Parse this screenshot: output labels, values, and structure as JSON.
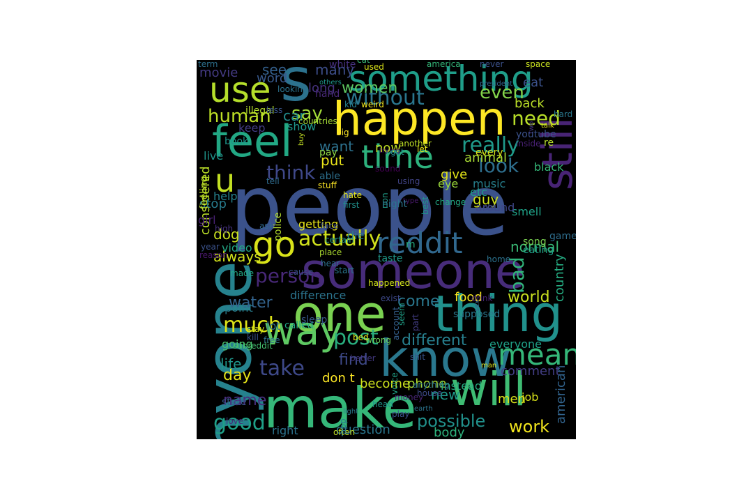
{
  "palette": {
    "background": "#000000",
    "yellow": "#fde725",
    "lime": "#9fda3a",
    "green": "#4ac16d",
    "teal": "#1fa187",
    "blue": "#277f8e",
    "navy": "#365c8d",
    "indigo": "#46327e",
    "purple": "#440154"
  },
  "words": [
    {
      "text": "people",
      "color": "#3b528b"
    },
    {
      "text": "someone",
      "color": "#472c7a"
    },
    {
      "text": "make",
      "color": "#35b779"
    },
    {
      "text": "thing",
      "color": "#21918c"
    },
    {
      "text": "know",
      "color": "#2a788e"
    },
    {
      "text": "will",
      "color": "#3fbc73"
    },
    {
      "text": "one",
      "color": "#7ad151"
    },
    {
      "text": "happen",
      "color": "#fde725"
    },
    {
      "text": "something",
      "color": "#1f9e89"
    },
    {
      "text": "use",
      "color": "#b5de2b"
    },
    {
      "text": "s",
      "color": "#2c728e"
    },
    {
      "text": "feel",
      "color": "#22a884"
    },
    {
      "text": "still",
      "color": "#482475"
    },
    {
      "text": "anyone",
      "color": "#26828e"
    },
    {
      "text": "way",
      "color": "#5ec962"
    },
    {
      "text": "time",
      "color": "#2db27d"
    },
    {
      "text": "go",
      "color": "#d8e219"
    },
    {
      "text": "u",
      "color": "#c2df23"
    },
    {
      "text": "reddit",
      "color": "#31688e"
    },
    {
      "text": "mean",
      "color": "#35b779"
    },
    {
      "text": "actually",
      "color": "#d0e11c"
    },
    {
      "text": "really",
      "color": "#1f9a8a"
    },
    {
      "text": "person",
      "color": "#482878"
    },
    {
      "text": "post",
      "color": "#29af7f"
    },
    {
      "text": "take",
      "color": "#3e4989"
    },
    {
      "text": "much",
      "color": "#dde318"
    },
    {
      "text": "good",
      "color": "#1fa088"
    },
    {
      "text": "without",
      "color": "#2a768e"
    },
    {
      "text": "need",
      "color": "#b8de29"
    },
    {
      "text": "think",
      "color": "#3f4889"
    },
    {
      "text": "look",
      "color": "#2e6f8e"
    },
    {
      "text": "human",
      "color": "#bddf26"
    },
    {
      "text": "say",
      "color": "#a2da37"
    },
    {
      "text": "want",
      "color": "#2d718e"
    },
    {
      "text": "see",
      "color": "#34608d"
    },
    {
      "text": "even",
      "color": "#84d44b"
    },
    {
      "text": "day",
      "color": "#e5e419"
    },
    {
      "text": "different",
      "color": "#277f8e"
    },
    {
      "text": "possible",
      "color": "#21918c"
    },
    {
      "text": "work",
      "color": "#f1e51d"
    },
    {
      "text": "world",
      "color": "#cae11f"
    },
    {
      "text": "find",
      "color": "#3e4a89"
    },
    {
      "text": "water",
      "color": "#33638d"
    },
    {
      "text": "come",
      "color": "#2a778e"
    },
    {
      "text": "many",
      "color": "#3d4e8a"
    },
    {
      "text": "women",
      "color": "#5ec962"
    },
    {
      "text": "long",
      "color": "#46337f"
    },
    {
      "text": "car",
      "color": "#228b8d"
    },
    {
      "text": "put",
      "color": "#eae51a"
    },
    {
      "text": "now",
      "color": "#c0df25"
    },
    {
      "text": "always",
      "color": "#d2e21b"
    },
    {
      "text": "bad",
      "color": "#31b57b"
    },
    {
      "text": "normal",
      "color": "#3aba76"
    },
    {
      "text": "country",
      "color": "#25ac82"
    },
    {
      "text": "food",
      "color": "#f6e620"
    },
    {
      "text": "dog",
      "color": "#c8e020"
    },
    {
      "text": "life",
      "color": "#1f968b"
    },
    {
      "text": "name",
      "color": "#472f7d"
    },
    {
      "text": "movie",
      "color": "#443a83"
    },
    {
      "text": "word",
      "color": "#38598c"
    },
    {
      "text": "considered",
      "color": "#bade28"
    },
    {
      "text": "guy",
      "color": "#cde11d"
    },
    {
      "text": "give",
      "color": "#e2e418"
    },
    {
      "text": "animal",
      "color": "#a8db34"
    },
    {
      "text": "point",
      "color": "#287d8e"
    },
    {
      "text": "going",
      "color": "#4ac16d"
    },
    {
      "text": "difference",
      "color": "#2b748e"
    },
    {
      "text": "comment",
      "color": "#433e85"
    },
    {
      "text": "american",
      "color": "#32648e"
    },
    {
      "text": "new",
      "color": "#1f9a8a"
    },
    {
      "text": "men",
      "color": "#dae319"
    },
    {
      "text": "body",
      "color": "#2db27d"
    },
    {
      "text": "phone",
      "color": "#addc30"
    },
    {
      "text": "become",
      "color": "#cde11d"
    },
    {
      "text": "question",
      "color": "#2a768e"
    },
    {
      "text": "right",
      "color": "#2c738e"
    },
    {
      "text": "don t",
      "color": "#fde725"
    },
    {
      "text": "stop",
      "color": "#287c8e"
    },
    {
      "text": "keep",
      "color": "#433d84"
    },
    {
      "text": "show",
      "color": "#1f978b"
    },
    {
      "text": "back",
      "color": "#bade28"
    },
    {
      "text": "eat",
      "color": "#3b528b"
    },
    {
      "text": "help",
      "color": "#26828e"
    },
    {
      "text": "girl",
      "color": "#482173"
    },
    {
      "text": "video",
      "color": "#22a785"
    },
    {
      "text": "everyone",
      "color": "#1fa188"
    },
    {
      "text": "instead",
      "color": "#27ad81"
    },
    {
      "text": "job",
      "color": "#d8e219"
    },
    {
      "text": "getting",
      "color": "#e7e419"
    },
    {
      "text": "music",
      "color": "#27808e"
    },
    {
      "text": "eye",
      "color": "#9bd93c"
    },
    {
      "text": "die",
      "color": "#297b8e"
    },
    {
      "text": "etc",
      "color": "#1e9c89"
    },
    {
      "text": "smell",
      "color": "#1fa287"
    },
    {
      "text": "around",
      "color": "#3f4788"
    },
    {
      "text": "live",
      "color": "#1f958b"
    },
    {
      "text": "black",
      "color": "#35b779"
    },
    {
      "text": "re",
      "color": "#b5de2b"
    },
    {
      "text": "every",
      "color": "#d8e219"
    },
    {
      "text": "lot",
      "color": "#2d718e"
    },
    {
      "text": "white",
      "color": "#46307e"
    },
    {
      "text": "cat",
      "color": "#3aba76"
    },
    {
      "text": "used",
      "color": "#dae319"
    },
    {
      "text": "america",
      "color": "#34b679"
    },
    {
      "text": "never",
      "color": "#3b518b"
    },
    {
      "text": "space",
      "color": "#c8e020"
    },
    {
      "text": "term",
      "color": "#2d708e"
    },
    {
      "text": "others",
      "color": "#1f968b"
    },
    {
      "text": "president",
      "color": "#33638d"
    },
    {
      "text": "hand",
      "color": "#482878"
    },
    {
      "text": "kid",
      "color": "#277f8e"
    },
    {
      "text": "weird",
      "color": "#f1e51d"
    },
    {
      "text": "looking",
      "color": "#2c738e"
    },
    {
      "text": "illegal",
      "color": "#b2dd2d"
    },
    {
      "text": "less",
      "color": "#3a548c"
    },
    {
      "text": "countries",
      "color": "#a5db36"
    },
    {
      "text": "hard",
      "color": "#2a788e"
    },
    {
      "text": "talk",
      "color": "#e2e418"
    },
    {
      "text": "two",
      "color": "#453781"
    },
    {
      "text": "inside",
      "color": "#482173"
    },
    {
      "text": "youtube",
      "color": "#3b528b"
    },
    {
      "text": "book",
      "color": "#1f958b"
    },
    {
      "text": "buy",
      "color": "#c2df23"
    },
    {
      "text": "big",
      "color": "#fde725"
    },
    {
      "text": "trying",
      "color": "#48186a"
    },
    {
      "text": "got",
      "color": "#228c8d"
    },
    {
      "text": "let",
      "color": "#e7e419"
    },
    {
      "text": "another",
      "color": "#bfdf25"
    },
    {
      "text": "pay",
      "color": "#8fd744"
    },
    {
      "text": "able",
      "color": "#2d708e"
    },
    {
      "text": "sound",
      "color": "#440154"
    },
    {
      "text": "using",
      "color": "#414487"
    },
    {
      "text": "tell",
      "color": "#2f6c8e"
    },
    {
      "text": "stuff",
      "color": "#fde725"
    },
    {
      "text": "feeling",
      "color": "#bddf26"
    },
    {
      "text": "hate",
      "color": "#e5e419"
    },
    {
      "text": "first",
      "color": "#21918c"
    },
    {
      "text": "non",
      "color": "#1f9e89"
    },
    {
      "text": "type",
      "color": "#48196b"
    },
    {
      "text": "change",
      "color": "#22a884"
    },
    {
      "text": "best",
      "color": "#1f968b"
    },
    {
      "text": "old",
      "color": "#3e4c8a"
    },
    {
      "text": "game",
      "color": "#2e6e8e"
    },
    {
      "text": "song",
      "color": "#7ad151"
    },
    {
      "text": "eating",
      "color": "#1fa088"
    },
    {
      "text": "police",
      "color": "#b5de2b"
    },
    {
      "text": "face",
      "color": "#3d4e8a"
    },
    {
      "text": "night",
      "color": "#2b748e"
    },
    {
      "text": "ask",
      "color": "#31688e"
    },
    {
      "text": "high",
      "color": "#46327e"
    },
    {
      "text": "year",
      "color": "#3b528b"
    },
    {
      "text": "reason",
      "color": "#48186a"
    },
    {
      "text": "certain",
      "color": "#1f958b"
    },
    {
      "text": "place",
      "color": "#addc30"
    },
    {
      "text": "hear",
      "color": "#2d718e"
    },
    {
      "text": "m",
      "color": "#26ad81"
    },
    {
      "text": "home",
      "color": "#2c728e"
    },
    {
      "text": "start",
      "color": "#2a788e"
    },
    {
      "text": "happened",
      "color": "#d2e21b"
    },
    {
      "text": "cause",
      "color": "#3b528b"
    },
    {
      "text": "taste",
      "color": "#1f9a8a"
    },
    {
      "text": "made",
      "color": "#22a785"
    },
    {
      "text": "exist",
      "color": "#3e4989"
    },
    {
      "text": "seem",
      "color": "#1fa188"
    },
    {
      "text": "sex",
      "color": "#33638d"
    },
    {
      "text": "account",
      "color": "#34608d"
    },
    {
      "text": "drink",
      "color": "#482475"
    },
    {
      "text": "supposed",
      "color": "#2a778e"
    },
    {
      "text": "part",
      "color": "#433e85"
    },
    {
      "text": "sleep",
      "color": "#38598c"
    },
    {
      "text": "called",
      "color": "#21a585"
    },
    {
      "text": "kill",
      "color": "#3b518b"
    },
    {
      "text": "stay",
      "color": "#d5e21a"
    },
    {
      "text": "free",
      "color": "#2d708e"
    },
    {
      "text": "subreddit",
      "color": "#44bf70"
    },
    {
      "text": "wrong",
      "color": "#6ccd5a"
    },
    {
      "text": "bed",
      "color": "#e7e419"
    },
    {
      "text": "better",
      "color": "#443a83"
    },
    {
      "text": "shit",
      "color": "#3a548c"
    },
    {
      "text": "man",
      "color": "#dde318"
    },
    {
      "text": "voice",
      "color": "#1fa287"
    },
    {
      "text": "anything",
      "color": "#2b758e"
    },
    {
      "text": "house",
      "color": "#3e4c8a"
    },
    {
      "text": "money",
      "color": "#482475"
    },
    {
      "text": "head",
      "color": "#1f958b"
    },
    {
      "text": "play",
      "color": "#3b528b"
    },
    {
      "text": "earth",
      "color": "#2c738e"
    },
    {
      "text": "state",
      "color": "#38598c"
    },
    {
      "text": "love",
      "color": "#472d7b"
    },
    {
      "text": "often",
      "color": "#c2df23"
    },
    {
      "text": "app",
      "color": "#29798e"
    },
    {
      "text": "light",
      "color": "#2a788e"
    },
    {
      "text": "online",
      "color": "#e5e419"
    },
    {
      "text": "trump",
      "color": "#d0e11c"
    },
    {
      "text": "college",
      "color": "#e2e418"
    },
    {
      "text": "language",
      "color": "#34608d"
    },
    {
      "text": "call",
      "color": "#26828e"
    },
    {
      "text": "school",
      "color": "#27808e"
    },
    {
      "text": "hurt",
      "color": "#2e6e8e"
    }
  ]
}
